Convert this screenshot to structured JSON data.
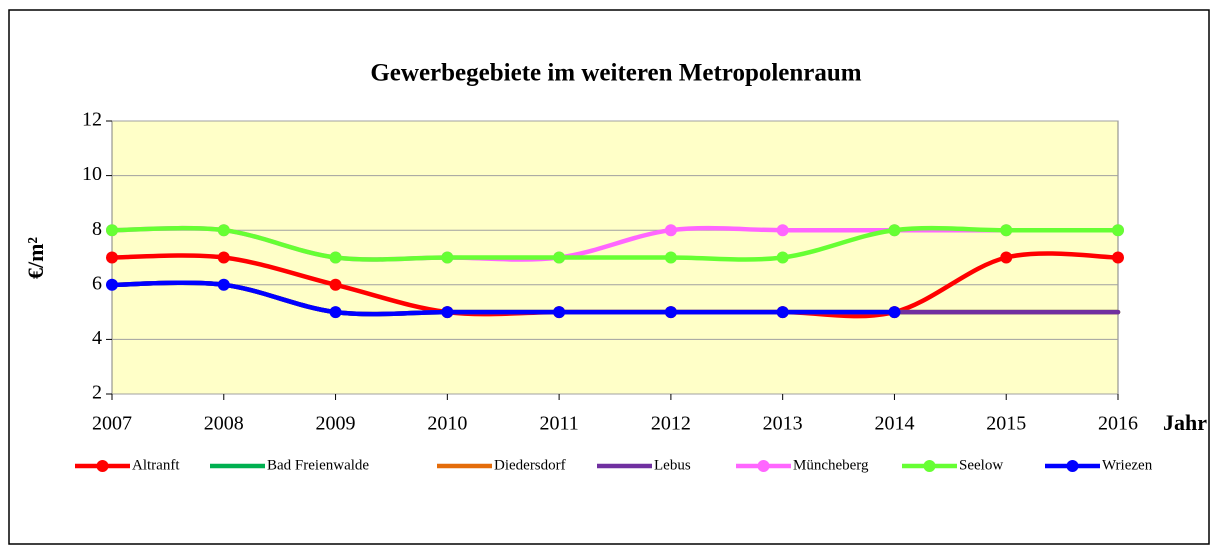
{
  "chart_data": {
    "type": "line",
    "title": "Gewerbegebiete im weiteren Metropolenraum",
    "x_label": "Jahr",
    "y_label": "€/m²",
    "x": [
      2007,
      2008,
      2009,
      2010,
      2011,
      2012,
      2013,
      2014,
      2015,
      2016
    ],
    "xlim": [
      2007,
      2016
    ],
    "xticks": [
      2007,
      2008,
      2009,
      2010,
      2011,
      2012,
      2013,
      2014,
      2015,
      2016
    ],
    "ylim": [
      2,
      12
    ],
    "yticks": [
      2,
      4,
      6,
      8,
      10,
      12
    ],
    "grid": true,
    "smooth": true,
    "legend": "bottom",
    "series": [
      {
        "name": "Altranft",
        "color": "#ff0000",
        "markers": true,
        "values": [
          7,
          7,
          6,
          5,
          5,
          5,
          5,
          5,
          7,
          7
        ]
      },
      {
        "name": "Bad Freienwalde",
        "color": "#00b050",
        "markers": false,
        "values": [
          6,
          6,
          5,
          5,
          5,
          5,
          5,
          5,
          5,
          5
        ]
      },
      {
        "name": "Diedersdorf",
        "color": "#e46c0a",
        "markers": false,
        "values": [
          6,
          6,
          5,
          5,
          5,
          5,
          5,
          5,
          5,
          5
        ]
      },
      {
        "name": "Lebus",
        "color": "#7030a0",
        "markers": false,
        "values": [
          6,
          6,
          5,
          5,
          5,
          5,
          5,
          5,
          5,
          5
        ]
      },
      {
        "name": "Müncheberg",
        "color": "#ff66ff",
        "markers": true,
        "values": [
          8,
          8,
          7,
          7,
          7,
          8,
          8,
          8,
          8,
          8
        ]
      },
      {
        "name": "Seelow",
        "color": "#66ff33",
        "markers": true,
        "values": [
          8,
          8,
          7,
          7,
          7,
          7,
          7,
          8,
          8,
          8
        ]
      },
      {
        "name": "Wriezen",
        "color": "#0000ff",
        "markers": true,
        "values": [
          6,
          6,
          5,
          5,
          5,
          5,
          5,
          5,
          null,
          null
        ]
      }
    ]
  }
}
